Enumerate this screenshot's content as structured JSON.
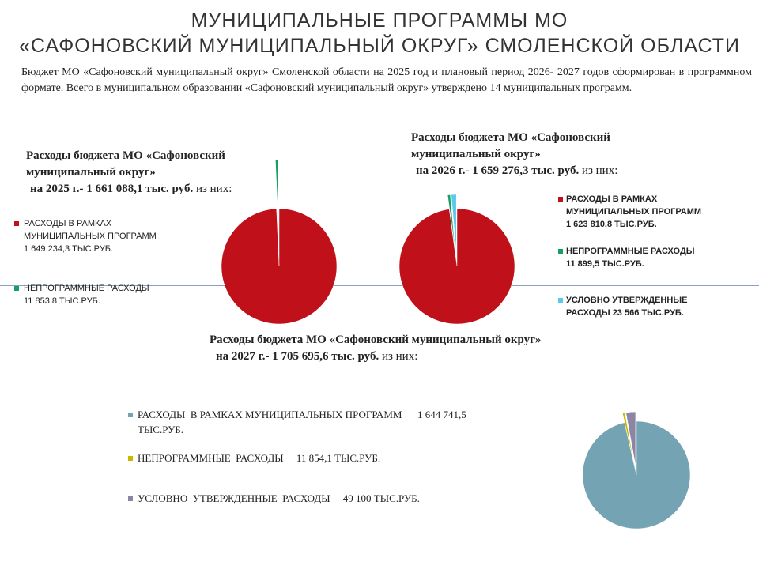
{
  "header": {
    "title_line1": "МУНИЦИПАЛЬНЫЕ ПРОГРАММЫ МО",
    "title_line2": "«САФОНОВСКИЙ МУНИЦИПАЛЬНЫЙ ОКРУГ» СМОЛЕНСКОЙ ОБЛАСТИ",
    "intro": "Бюджет МО «Сафоновский муниципальный округ» Смоленской области на 2025 год и плановый период 2026- 2027 годов сформирован в программном формате. Всего в муниципальном образовании «Сафоновский муниципальный округ» утверждено 14 муниципальных программ."
  },
  "chart_data": [
    {
      "type": "pie",
      "caption_line1": "Расходы бюджета МО «Сафоновский",
      "caption_line2": "муниципальный округ»",
      "caption_bold3": "на 2025 г.- 1 661 088,1 тыс. руб.",
      "caption_tail": " из них:",
      "slices": [
        {
          "label_line1": "РАСХОДЫ В РАМКАХ",
          "label_line2": "МУНИЦИПАЛЬНЫХ ПРОГРАММ",
          "label_line3": "1 649 234,3 ТЫС.РУБ.",
          "value": 1649234.3,
          "color": "#c0101a"
        },
        {
          "label_line1": "НЕПРОГРАММНЫЕ РАСХОДЫ",
          "label_line2": "11 853,8  ТЫС.РУБ.",
          "value": 11853.8,
          "color": "#14a060"
        }
      ]
    },
    {
      "type": "pie",
      "caption_line1": "Расходы бюджета МО «Сафоновский",
      "caption_line2": "муниципальный округ»",
      "caption_bold3": "на 2026 г.- 1 659 276,3 тыс. руб.",
      "caption_tail": " из них:",
      "slices": [
        {
          "label_line1": "РАСХОДЫ  В  РАМКАХ",
          "label_line2": "МУНИЦИПАЛЬНЫХ ПРОГРАММ",
          "label_line3": "1 623 810,8  ТЫС.РУБ.",
          "value": 1623810.8,
          "color": "#c0101a"
        },
        {
          "label_line1": "НЕПРОГРАММНЫЕ РАСХОДЫ",
          "label_line2": "11 899,5 ТЫС.РУБ.",
          "value": 11899.5,
          "color": "#14a060"
        },
        {
          "label_line1": "УСЛОВНО  УТВЕРЖДЕННЫЕ",
          "label_line2": "РАСХОДЫ   23 566 ТЫС.РУБ.",
          "value": 23566,
          "color": "#5bc8ee"
        }
      ]
    },
    {
      "type": "pie",
      "caption_line1": "Расходы бюджета МО «Сафоновский муниципальный округ»",
      "caption_bold2": "на 2027 г.- 1 705 695,6 тыс. руб.",
      "caption_tail": " из них:",
      "slices": [
        {
          "label_line1": "РАСХОДЫ  В РАМКАХ МУНИЦИПАЛЬНЫХ ПРОГРАММ      1 644 741,5",
          "label_line2": "ТЫС.РУБ.",
          "value": 1644741.5,
          "color": "#74a3b4"
        },
        {
          "label_line1": "НЕПРОГРАММНЫЕ  РАСХОДЫ     11 854,1 ТЫС.РУБ.",
          "value": 11854.1,
          "color": "#c9b700"
        },
        {
          "label_line1": "УСЛОВНО  УТВЕРЖДЕННЫЕ  РАСХОДЫ     49 100 ТЫС.РУБ.",
          "value": 49100,
          "color": "#8c86a2"
        }
      ]
    }
  ]
}
